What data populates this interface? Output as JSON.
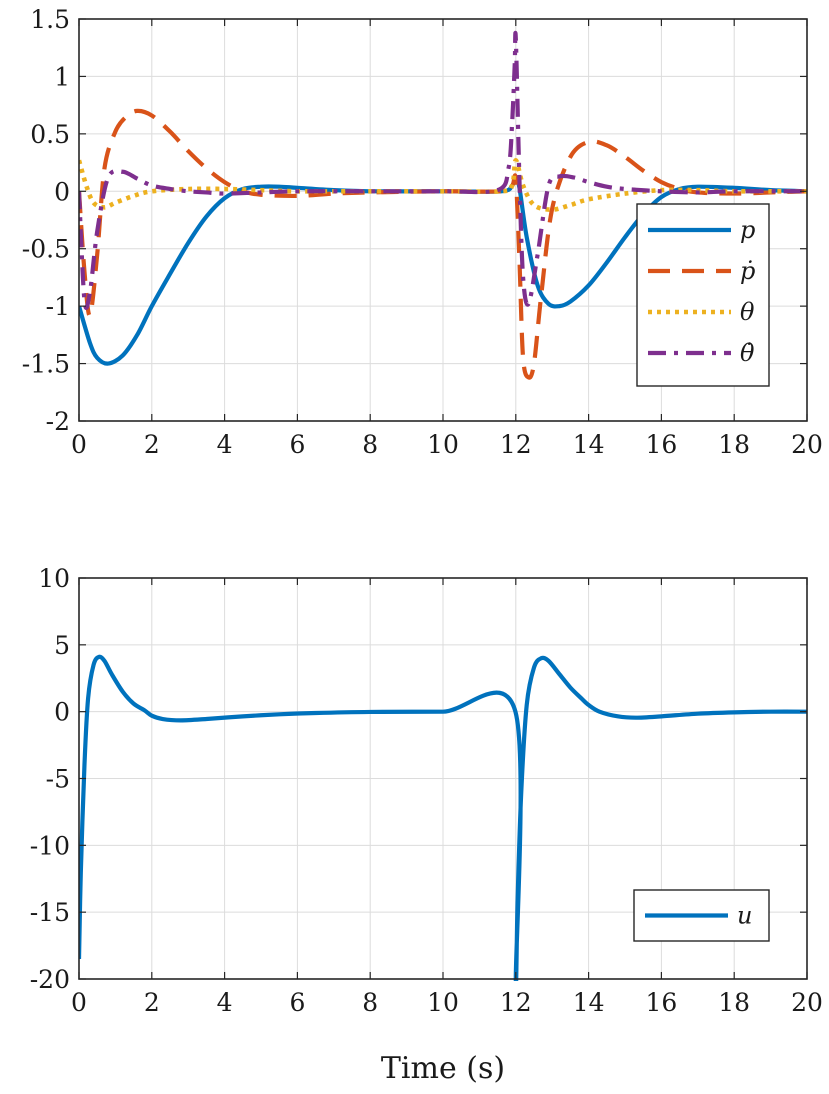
{
  "chart_data": [
    {
      "type": "line",
      "xlim": [
        0,
        20
      ],
      "ylim": [
        -2,
        1.5
      ],
      "xticks": [
        0,
        2,
        4,
        6,
        8,
        10,
        12,
        14,
        16,
        18,
        20
      ],
      "yticks": [
        1.5,
        1,
        0.5,
        0,
        -0.5,
        -1,
        -1.5,
        -2
      ],
      "xtick_labels": [
        "0",
        "2",
        "4",
        "6",
        "8",
        "10",
        "12",
        "14",
        "16",
        "18",
        "20"
      ],
      "ytick_labels": [
        "1.5",
        "1",
        "0.5",
        "0",
        "-0.5",
        "-1",
        "-1.5",
        "-2"
      ],
      "grid": true,
      "legend_position": "right",
      "series": [
        {
          "name": "p",
          "color": "#0072BD",
          "style": "solid",
          "x": [
            0,
            0.3,
            0.5,
            0.8,
            1.2,
            1.6,
            2,
            2.5,
            3,
            3.5,
            4,
            4.5,
            5,
            5.5,
            6,
            7,
            8,
            10,
            11.6,
            11.9,
            12,
            12.1,
            12.3,
            12.6,
            12.9,
            13.2,
            13.5,
            14,
            14.5,
            15,
            15.5,
            16,
            16.5,
            17,
            18,
            19,
            20
          ],
          "y": [
            -1,
            -1.32,
            -1.45,
            -1.5,
            -1.43,
            -1.25,
            -1.0,
            -0.72,
            -0.45,
            -0.22,
            -0.06,
            0.02,
            0.04,
            0.04,
            0.03,
            0.01,
            0,
            0,
            0,
            0.05,
            0.12,
            0.03,
            -0.4,
            -0.82,
            -0.98,
            -1.0,
            -0.96,
            -0.82,
            -0.62,
            -0.4,
            -0.2,
            -0.05,
            0.02,
            0.04,
            0.03,
            0.01,
            0
          ]
        },
        {
          "name": "ṗ",
          "color": "#D95319",
          "style": "dashed",
          "x": [
            0,
            0.15,
            0.3,
            0.5,
            0.7,
            1,
            1.3,
            1.6,
            2,
            2.5,
            3,
            3.5,
            4,
            4.5,
            5,
            6,
            7,
            8,
            10,
            11.6,
            11.9,
            12,
            12.1,
            12.2,
            12.35,
            12.5,
            12.7,
            13,
            13.5,
            14,
            14.5,
            15,
            15.5,
            16,
            16.5,
            17,
            18,
            19,
            20
          ],
          "y": [
            0,
            -0.7,
            -1.08,
            -0.55,
            0.2,
            0.52,
            0.65,
            0.7,
            0.66,
            0.52,
            0.35,
            0.2,
            0.08,
            0.0,
            -0.03,
            -0.04,
            -0.02,
            -0.01,
            0,
            0,
            0.05,
            0.1,
            -0.6,
            -1.45,
            -1.62,
            -1.5,
            -0.9,
            -0.15,
            0.3,
            0.43,
            0.4,
            0.3,
            0.18,
            0.08,
            0.02,
            -0.01,
            -0.02,
            -0.01,
            0
          ]
        },
        {
          "name": "θ",
          "color": "#EDB120",
          "style": "dotted",
          "x": [
            0,
            0.2,
            0.4,
            0.7,
            1,
            1.5,
            2,
            3,
            4,
            5,
            6,
            8,
            10,
            11.6,
            11.9,
            12,
            12.2,
            12.5,
            13,
            13.5,
            14,
            15,
            16,
            17,
            18,
            20
          ],
          "y": [
            0.27,
            0.05,
            -0.1,
            -0.14,
            -0.1,
            -0.04,
            0.0,
            0.02,
            0.02,
            0.01,
            0,
            0,
            0,
            0,
            0.05,
            0.27,
            0.05,
            -0.12,
            -0.16,
            -0.12,
            -0.07,
            -0.02,
            0.01,
            0.01,
            0,
            0
          ]
        },
        {
          "name": "θ̇",
          "color": "#7E2F8E",
          "style": "dashdot",
          "x": [
            0,
            0.15,
            0.3,
            0.5,
            0.8,
            1.2,
            1.6,
            2,
            2.5,
            3,
            3.5,
            4,
            5,
            6,
            8,
            10,
            11.5,
            11.8,
            11.9,
            11.97,
            12.0,
            12.1,
            12.2,
            12.35,
            12.6,
            12.9,
            13.2,
            13.6,
            14,
            14.5,
            15,
            16,
            17,
            18,
            20
          ],
          "y": [
            0,
            -0.95,
            -0.88,
            -0.35,
            0.12,
            0.17,
            0.11,
            0.05,
            0.02,
            0.0,
            -0.01,
            -0.02,
            -0.01,
            0,
            0,
            0,
            0.01,
            0.2,
            0.6,
            1.1,
            1.33,
            0.1,
            -0.75,
            -0.98,
            -0.55,
            0.05,
            0.13,
            0.12,
            0.08,
            0.04,
            0.02,
            0,
            -0.01,
            0,
            0
          ]
        }
      ]
    },
    {
      "type": "line",
      "xlim": [
        0,
        20
      ],
      "ylim": [
        -20,
        10
      ],
      "xticks": [
        0,
        2,
        4,
        6,
        8,
        10,
        12,
        14,
        16,
        18,
        20
      ],
      "yticks": [
        10,
        5,
        0,
        -5,
        -10,
        -15,
        -20
      ],
      "xtick_labels": [
        "0",
        "2",
        "4",
        "6",
        "8",
        "10",
        "12",
        "14",
        "16",
        "18",
        "20"
      ],
      "ytick_labels": [
        "10",
        "5",
        "0",
        "-5",
        "-10",
        "-15",
        "-20"
      ],
      "xlabel": "Time (s)",
      "grid": true,
      "legend_position": "bottom-right",
      "series": [
        {
          "name": "u",
          "color": "#0072BD",
          "style": "solid",
          "x": [
            0,
            0.05,
            0.15,
            0.25,
            0.4,
            0.55,
            0.7,
            0.9,
            1.2,
            1.5,
            1.8,
            2.0,
            2.3,
            2.8,
            3.5,
            4.5,
            5.5,
            6.5,
            8,
            10,
            11.99,
            12.0,
            12.05,
            12.15,
            12.3,
            12.5,
            12.7,
            12.9,
            13.2,
            13.5,
            13.8,
            14.0,
            14.3,
            14.8,
            15.3,
            16,
            17,
            18,
            19,
            20
          ],
          "y": [
            -18.5,
            -12,
            -4,
            1,
            3.5,
            4.1,
            3.8,
            2.8,
            1.5,
            0.6,
            0.1,
            -0.3,
            -0.55,
            -0.65,
            -0.55,
            -0.35,
            -0.2,
            -0.1,
            -0.02,
            0,
            0,
            -20,
            -14,
            -6,
            0.5,
            3.3,
            4.0,
            3.8,
            2.8,
            1.8,
            1.0,
            0.5,
            0.0,
            -0.35,
            -0.45,
            -0.35,
            -0.15,
            -0.05,
            0,
            0
          ]
        }
      ]
    }
  ]
}
